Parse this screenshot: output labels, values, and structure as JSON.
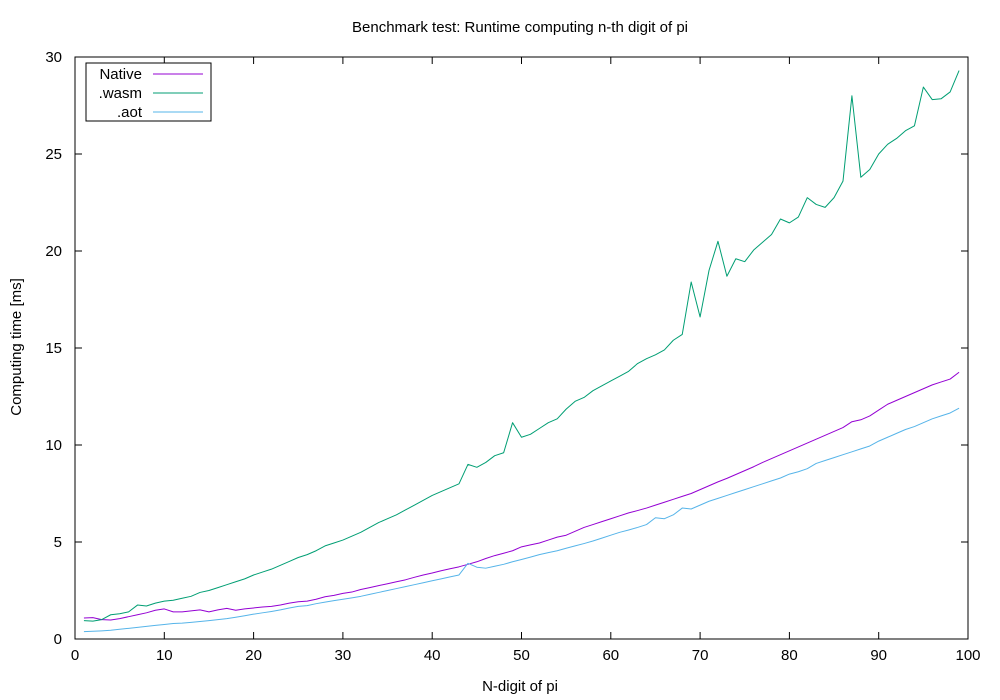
{
  "chart_data": {
    "type": "line",
    "title": "Benchmark test: Runtime computing n-th digit of pi",
    "xlabel": "N-digit of pi",
    "ylabel": "Computing time [ms]",
    "xlim": [
      0,
      100
    ],
    "ylim": [
      0,
      30
    ],
    "xticks": [
      0,
      10,
      20,
      30,
      40,
      50,
      60,
      70,
      80,
      90,
      100
    ],
    "yticks": [
      0,
      5,
      10,
      15,
      20,
      25,
      30
    ],
    "grid": false,
    "legend_position": "top-left",
    "x": [
      1,
      2,
      3,
      4,
      5,
      6,
      7,
      8,
      9,
      10,
      11,
      12,
      13,
      14,
      15,
      16,
      17,
      18,
      19,
      20,
      21,
      22,
      23,
      24,
      25,
      26,
      27,
      28,
      29,
      30,
      31,
      32,
      33,
      34,
      35,
      36,
      37,
      38,
      39,
      40,
      41,
      42,
      43,
      44,
      45,
      46,
      47,
      48,
      49,
      50,
      51,
      52,
      53,
      54,
      55,
      56,
      57,
      58,
      59,
      60,
      61,
      62,
      63,
      64,
      65,
      66,
      67,
      68,
      69,
      70,
      71,
      72,
      73,
      74,
      75,
      76,
      77,
      78,
      79,
      80,
      81,
      82,
      83,
      84,
      85,
      86,
      87,
      88,
      89,
      90,
      91,
      92,
      93,
      94,
      95,
      96,
      97,
      98,
      99
    ],
    "series": [
      {
        "name": "Native",
        "color": "#9400d3",
        "values": [
          1.08,
          1.1,
          1.0,
          0.98,
          1.05,
          1.15,
          1.25,
          1.35,
          1.48,
          1.55,
          1.4,
          1.4,
          1.45,
          1.5,
          1.4,
          1.5,
          1.58,
          1.48,
          1.55,
          1.6,
          1.65,
          1.68,
          1.75,
          1.85,
          1.92,
          1.95,
          2.05,
          2.18,
          2.25,
          2.35,
          2.42,
          2.55,
          2.65,
          2.75,
          2.85,
          2.95,
          3.05,
          3.18,
          3.3,
          3.4,
          3.52,
          3.62,
          3.72,
          3.85,
          3.98,
          4.15,
          4.3,
          4.42,
          4.55,
          4.75,
          4.85,
          4.95,
          5.1,
          5.25,
          5.35,
          5.55,
          5.75,
          5.9,
          6.05,
          6.2,
          6.35,
          6.5,
          6.62,
          6.75,
          6.9,
          7.05,
          7.2,
          7.35,
          7.5,
          7.7,
          7.9,
          8.1,
          8.28,
          8.48,
          8.68,
          8.88,
          9.1,
          9.3,
          9.5,
          9.7,
          9.9,
          10.1,
          10.3,
          10.5,
          10.7,
          10.9,
          11.2,
          11.3,
          11.5,
          11.8,
          12.1,
          12.3,
          12.5,
          12.7,
          12.9,
          13.1,
          13.25,
          13.4,
          13.75
        ]
      },
      {
        "name": ".wasm",
        "color": "#009e73",
        "values": [
          0.95,
          0.92,
          1.0,
          1.25,
          1.3,
          1.4,
          1.75,
          1.7,
          1.85,
          1.95,
          2.0,
          2.1,
          2.2,
          2.4,
          2.5,
          2.65,
          2.8,
          2.95,
          3.1,
          3.3,
          3.45,
          3.6,
          3.8,
          4.0,
          4.2,
          4.35,
          4.55,
          4.8,
          4.95,
          5.1,
          5.3,
          5.5,
          5.75,
          6.0,
          6.2,
          6.4,
          6.65,
          6.9,
          7.15,
          7.4,
          7.6,
          7.8,
          8.0,
          9.0,
          8.85,
          9.1,
          9.45,
          9.6,
          11.15,
          10.4,
          10.55,
          10.85,
          11.15,
          11.35,
          11.85,
          12.25,
          12.45,
          12.8,
          13.05,
          13.3,
          13.55,
          13.8,
          14.2,
          14.45,
          14.65,
          14.9,
          15.4,
          15.7,
          18.4,
          16.6,
          19.0,
          20.5,
          18.7,
          19.6,
          19.45,
          20.05,
          20.45,
          20.85,
          21.65,
          21.45,
          21.75,
          22.75,
          22.4,
          22.25,
          22.75,
          23.6,
          28.0,
          23.8,
          24.2,
          25.0,
          25.5,
          25.8,
          26.2,
          26.45,
          28.45,
          27.8,
          27.85,
          28.2,
          29.3
        ]
      },
      {
        "name": ".aot",
        "color": "#56b4e9",
        "values": [
          0.38,
          0.4,
          0.42,
          0.45,
          0.5,
          0.55,
          0.6,
          0.65,
          0.7,
          0.75,
          0.8,
          0.82,
          0.86,
          0.9,
          0.95,
          1.0,
          1.05,
          1.12,
          1.2,
          1.28,
          1.35,
          1.42,
          1.5,
          1.6,
          1.68,
          1.72,
          1.82,
          1.9,
          1.98,
          2.05,
          2.12,
          2.2,
          2.3,
          2.4,
          2.5,
          2.6,
          2.7,
          2.8,
          2.9,
          3.0,
          3.1,
          3.2,
          3.3,
          3.9,
          3.7,
          3.65,
          3.75,
          3.85,
          3.98,
          4.1,
          4.22,
          4.35,
          4.45,
          4.55,
          4.68,
          4.8,
          4.92,
          5.05,
          5.2,
          5.35,
          5.5,
          5.62,
          5.75,
          5.9,
          6.25,
          6.2,
          6.4,
          6.75,
          6.7,
          6.9,
          7.1,
          7.25,
          7.4,
          7.55,
          7.7,
          7.85,
          8.0,
          8.15,
          8.3,
          8.5,
          8.62,
          8.78,
          9.05,
          9.2,
          9.35,
          9.5,
          9.65,
          9.8,
          9.95,
          10.2,
          10.4,
          10.6,
          10.8,
          10.95,
          11.15,
          11.35,
          11.5,
          11.65,
          11.9
        ]
      }
    ]
  }
}
